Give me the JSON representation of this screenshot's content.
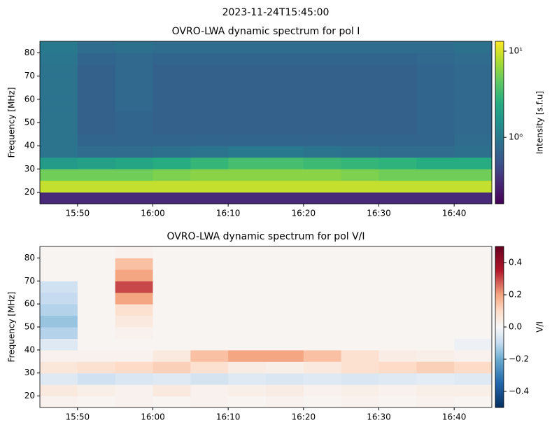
{
  "suptitle": "2023-11-24T15:45:00",
  "chart_data": [
    {
      "type": "heatmap",
      "title": "OVRO-LWA dynamic spectrum for pol I",
      "ylabel": "Frequency [MHz]",
      "clabel": "Intensity [s.f.u]",
      "colormap": "viridis",
      "log_color": true,
      "clim": [
        0.17,
        13
      ],
      "cticks": [
        {
          "value": 1,
          "label": "10⁰"
        },
        {
          "value": 10,
          "label": "10¹"
        }
      ],
      "xlim": [
        945,
        1005
      ],
      "ylim": [
        15,
        85
      ],
      "xticks": [
        {
          "value": 950,
          "label": "15:50"
        },
        {
          "value": 960,
          "label": "16:00"
        },
        {
          "value": 970,
          "label": "16:10"
        },
        {
          "value": 980,
          "label": "16:20"
        },
        {
          "value": 990,
          "label": "16:30"
        },
        {
          "value": 1000,
          "label": "16:40"
        }
      ],
      "yticks": [
        20,
        30,
        40,
        50,
        60,
        70,
        80
      ],
      "xbins": [
        945,
        950,
        955,
        960,
        965,
        970,
        975,
        980,
        985,
        990,
        995,
        1000,
        1005
      ],
      "ybins": [
        15,
        20,
        25,
        30,
        35,
        40,
        45,
        50,
        55,
        60,
        65,
        70,
        75,
        80,
        85
      ],
      "values": [
        [
          0.3,
          0.3,
          0.3,
          0.3,
          0.3,
          0.3,
          0.3,
          0.3,
          0.3,
          0.3,
          0.3,
          0.3
        ],
        [
          9,
          9,
          9,
          9,
          9,
          9,
          9,
          9,
          9,
          9,
          9,
          9
        ],
        [
          5,
          5,
          5,
          5.5,
          6,
          6,
          6,
          6,
          5.5,
          5,
          5,
          5
        ],
        [
          1.8,
          2,
          2.2,
          2.5,
          3,
          3.5,
          3.5,
          3.2,
          3,
          2.8,
          2.5,
          2.5
        ],
        [
          0.9,
          0.8,
          0.8,
          0.85,
          0.9,
          1,
          1,
          0.9,
          0.85,
          0.8,
          0.8,
          0.85
        ],
        [
          0.9,
          0.7,
          0.7,
          0.7,
          0.7,
          0.7,
          0.7,
          0.7,
          0.7,
          0.7,
          0.7,
          0.8
        ],
        [
          0.9,
          0.65,
          0.7,
          0.65,
          0.65,
          0.65,
          0.65,
          0.65,
          0.65,
          0.65,
          0.7,
          0.75
        ],
        [
          0.9,
          0.65,
          0.7,
          0.65,
          0.65,
          0.65,
          0.65,
          0.65,
          0.65,
          0.65,
          0.7,
          0.75
        ],
        [
          0.9,
          0.65,
          0.75,
          0.65,
          0.65,
          0.65,
          0.65,
          0.65,
          0.65,
          0.65,
          0.7,
          0.75
        ],
        [
          0.9,
          0.65,
          0.75,
          0.65,
          0.65,
          0.65,
          0.65,
          0.65,
          0.65,
          0.65,
          0.7,
          0.75
        ],
        [
          0.9,
          0.65,
          0.75,
          0.65,
          0.65,
          0.65,
          0.65,
          0.65,
          0.65,
          0.65,
          0.7,
          0.75
        ],
        [
          0.9,
          0.65,
          0.75,
          0.65,
          0.65,
          0.65,
          0.65,
          0.65,
          0.65,
          0.65,
          0.7,
          0.75
        ],
        [
          0.95,
          0.7,
          0.75,
          0.7,
          0.7,
          0.7,
          0.7,
          0.7,
          0.7,
          0.7,
          0.75,
          0.8
        ],
        [
          1,
          0.8,
          0.85,
          0.8,
          0.8,
          0.8,
          0.8,
          0.8,
          0.8,
          0.8,
          0.8,
          0.85
        ]
      ]
    },
    {
      "type": "heatmap",
      "title": "OVRO-LWA dynamic spectrum for pol V/I",
      "ylabel": "Frequency [MHz]",
      "clabel": "V/I",
      "colormap": "RdBu_r",
      "log_color": false,
      "clim": [
        -0.5,
        0.5
      ],
      "cticks": [
        {
          "value": -0.4,
          "label": "−0.4"
        },
        {
          "value": -0.2,
          "label": "−0.2"
        },
        {
          "value": 0,
          "label": "0.0"
        },
        0.2,
        0.4
      ],
      "xlim": [
        945,
        1005
      ],
      "ylim": [
        15,
        85
      ],
      "xticks": [
        {
          "value": 950,
          "label": "15:50"
        },
        {
          "value": 960,
          "label": "16:00"
        },
        {
          "value": 970,
          "label": "16:10"
        },
        {
          "value": 980,
          "label": "16:20"
        },
        {
          "value": 990,
          "label": "16:30"
        },
        {
          "value": 1000,
          "label": "16:40"
        }
      ],
      "yticks": [
        20,
        30,
        40,
        50,
        60,
        70,
        80
      ],
      "xbins": [
        945,
        950,
        955,
        960,
        965,
        970,
        975,
        980,
        985,
        990,
        995,
        1000,
        1005
      ],
      "ybins": [
        15,
        20,
        25,
        30,
        35,
        40,
        45,
        50,
        55,
        60,
        65,
        70,
        75,
        80,
        85
      ],
      "values": [
        [
          0.02,
          0.01,
          0.02,
          0.01,
          0.02,
          0.01,
          0.02,
          0.01,
          0.02,
          0.01,
          0.02,
          0.01
        ],
        [
          0.05,
          0.03,
          0.02,
          0.05,
          0.02,
          0.03,
          0.04,
          0.02,
          0.03,
          0.02,
          0.03,
          0.03
        ],
        [
          -0.05,
          -0.08,
          -0.06,
          -0.05,
          -0.07,
          -0.05,
          -0.06,
          -0.05,
          -0.06,
          -0.05,
          -0.04,
          -0.05
        ],
        [
          0.06,
          0.08,
          0.1,
          0.12,
          0.08,
          0.04,
          0.03,
          0.05,
          0.08,
          0.1,
          0.12,
          0.1
        ],
        [
          0.02,
          0.02,
          0.02,
          0.05,
          0.15,
          0.2,
          0.2,
          0.15,
          0.08,
          0.04,
          0.03,
          0.02
        ],
        [
          -0.05,
          0.01,
          0.01,
          0.01,
          0.01,
          0.01,
          0.01,
          0.01,
          0.01,
          0.01,
          0.01,
          -0.02
        ],
        [
          -0.12,
          0.01,
          0.02,
          0.01,
          0.01,
          0.01,
          0.01,
          0.01,
          0.01,
          0.01,
          0.01,
          0.01
        ],
        [
          -0.15,
          0.01,
          0.05,
          0.01,
          0.01,
          0.01,
          0.01,
          0.01,
          0.01,
          0.01,
          0.01,
          0.01
        ],
        [
          -0.12,
          0.01,
          0.08,
          0.01,
          0.01,
          0.01,
          0.01,
          0.01,
          0.01,
          0.01,
          0.01,
          0.01
        ],
        [
          -0.1,
          0.01,
          0.2,
          0.01,
          0.01,
          0.01,
          0.01,
          0.01,
          0.01,
          0.01,
          0.01,
          0.01
        ],
        [
          -0.08,
          0.01,
          0.3,
          0.01,
          0.01,
          0.01,
          0.01,
          0.01,
          0.01,
          0.01,
          0.01,
          0.01
        ],
        [
          0.01,
          0.01,
          0.2,
          0.01,
          0.01,
          0.01,
          0.01,
          0.01,
          0.01,
          0.01,
          0.01,
          0.01
        ],
        [
          0.01,
          0.01,
          0.15,
          0.01,
          0.01,
          0.01,
          0.01,
          0.01,
          0.01,
          0.01,
          0.01,
          0.01
        ],
        [
          0.01,
          0.01,
          0.02,
          0.01,
          0.01,
          0.01,
          0.01,
          0.01,
          0.01,
          0.01,
          0.01,
          0.01
        ]
      ]
    }
  ]
}
